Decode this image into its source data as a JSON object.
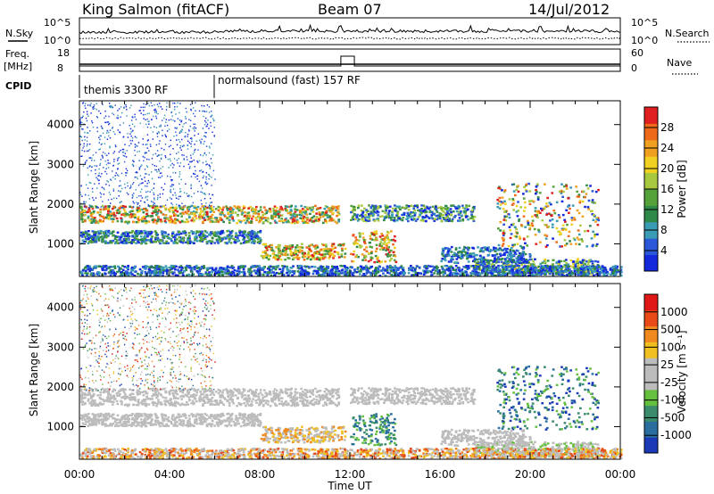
{
  "header": {
    "station": "King Salmon (fitACF)",
    "beam": "Beam 07",
    "date": "14/Jul/2012"
  },
  "params": {
    "nsky_label": "N.Sky",
    "nsearch_label": "N.Search",
    "freq_label_1": "Freq.",
    "freq_label_2": "[MHz]",
    "nave_label": "Nave",
    "cpid_label": "CPID",
    "noise_ticks_left": [
      "10^5",
      "10^0"
    ],
    "noise_ticks_right": [
      "10^5",
      "10^0"
    ],
    "freq_ticks": [
      "18",
      "8"
    ],
    "nave_ticks": [
      "60",
      "0"
    ],
    "cpid_segments": [
      {
        "label": "themis 3300 RF",
        "start_hour": 0,
        "end_hour": 6
      },
      {
        "label": "normalsound (fast) 157 RF",
        "start_hour": 6,
        "end_hour": 24
      }
    ]
  },
  "chart_data": [
    {
      "type": "heatmap",
      "name": "power-panel",
      "xlabel": "",
      "ylabel": "Slant Range [km]",
      "xlim": [
        0,
        24
      ],
      "ylim": [
        180,
        4600
      ],
      "yticks": [
        1000,
        2000,
        3000,
        4000
      ],
      "colorbar": {
        "label": "Power [dB]",
        "ticks": [
          "4",
          "8",
          "12",
          "16",
          "20",
          "24",
          "28"
        ],
        "colors": [
          "#1428dc",
          "#2a58d8",
          "#3a9bb4",
          "#2f8a4a",
          "#55a23a",
          "#a8c840",
          "#f0d020",
          "#f0a020",
          "#ee6a1a",
          "#e02020"
        ]
      }
    },
    {
      "type": "heatmap",
      "name": "velocity-panel",
      "xlabel": "Time UT",
      "ylabel": "Slant Range [km]",
      "xlim": [
        0,
        24
      ],
      "ylim": [
        180,
        4600
      ],
      "yticks": [
        1000,
        2000,
        3000,
        4000
      ],
      "xticks": [
        "00:00",
        "04:00",
        "08:00",
        "12:00",
        "16:00",
        "20:00",
        "00:00"
      ],
      "colorbar": {
        "label": "Velocity [m s⁻¹]",
        "ticks": [
          "1000",
          "500",
          "100",
          "25",
          "-25",
          "-100",
          "-500",
          "-1000"
        ],
        "colors": [
          "#1c3ab8",
          "#2a6ea0",
          "#3a8c6c",
          "#66c040",
          "#bcbcbc",
          "#bcbcbc",
          "#f0c020",
          "#f08a20",
          "#e84a18",
          "#e01818"
        ]
      }
    }
  ]
}
